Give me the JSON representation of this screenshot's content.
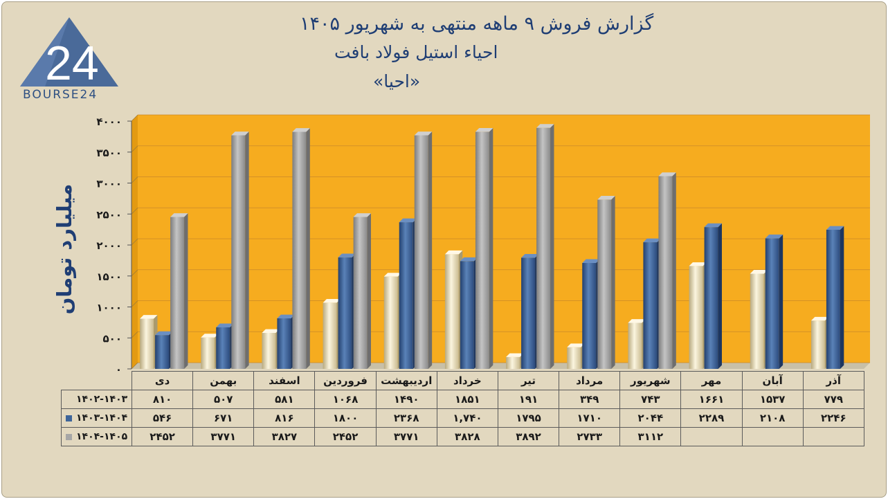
{
  "header": {
    "title_line1": "گزارش  فروش ۹ ماهه منتهی به شهریور ۱۴۰۵",
    "title_line2": "احیاء استیل فولاد بافت",
    "title_line3": "«احیا»"
  },
  "logo": {
    "text": "BOURSE24",
    "mark": "24"
  },
  "colors": {
    "background": "#e2d8bf",
    "plot_area": "#f6ac1f",
    "series1": "#f1e8cc",
    "series2": "#3e6599",
    "series3": "#a6a6a6",
    "title": "#1f3e74"
  },
  "chart_data": {
    "type": "bar",
    "ylabel": "میلیارد تومان",
    "ylim": [
      0,
      4000
    ],
    "yticks": [
      "۰",
      "۵۰۰",
      "۱۰۰۰",
      "۱۵۰۰",
      "۲۰۰۰",
      "۲۵۰۰",
      "۳۰۰۰",
      "۳۵۰۰",
      "۴۰۰۰"
    ],
    "ytick_values": [
      0,
      500,
      1000,
      1500,
      2000,
      2500,
      3000,
      3500,
      4000
    ],
    "grid": true,
    "legend": "data-table",
    "categories": [
      "دی",
      "بهمن",
      "اسفند",
      "فروردین",
      "اردیبهشت",
      "خرداد",
      "تیر",
      "مرداد",
      "شهریور",
      "مهر",
      "آبان",
      "آذر"
    ],
    "series": [
      {
        "name": "۱۴۰۲-۱۴۰۳",
        "values": [
          810,
          507,
          581,
          1068,
          1490,
          1851,
          191,
          349,
          743,
          1661,
          1537,
          779
        ],
        "labels": [
          "۸۱۰",
          "۵۰۷",
          "۵۸۱",
          "۱۰۶۸",
          "۱۴۹۰",
          "۱۸۵۱",
          "۱۹۱",
          "۳۴۹",
          "۷۴۳",
          "۱۶۶۱",
          "۱۵۳۷",
          "۷۷۹"
        ]
      },
      {
        "name": "۱۴۰۳-۱۴۰۴",
        "values": [
          546,
          671,
          816,
          1800,
          2368,
          1740,
          1795,
          1710,
          2044,
          2289,
          2108,
          2246
        ],
        "labels": [
          "۵۴۶",
          "۶۷۱",
          "۸۱۶",
          "۱۸۰۰",
          "۲۳۶۸",
          "۱,۷۴۰",
          "۱۷۹۵",
          "۱۷۱۰",
          "۲۰۴۴",
          "۲۲۸۹",
          "۲۱۰۸",
          "۲۲۴۶"
        ]
      },
      {
        "name": "۱۴۰۴-۱۴۰۵",
        "values": [
          2452,
          3771,
          3827,
          2452,
          3771,
          3828,
          3892,
          2733,
          3112,
          null,
          null,
          null
        ],
        "labels": [
          "۲۴۵۲",
          "۳۷۷۱",
          "۳۸۲۷",
          "۲۴۵۲",
          "۳۷۷۱",
          "۳۸۲۸",
          "۳۸۹۲",
          "۲۷۳۳",
          "۳۱۱۲",
          "",
          "",
          ""
        ]
      }
    ]
  }
}
